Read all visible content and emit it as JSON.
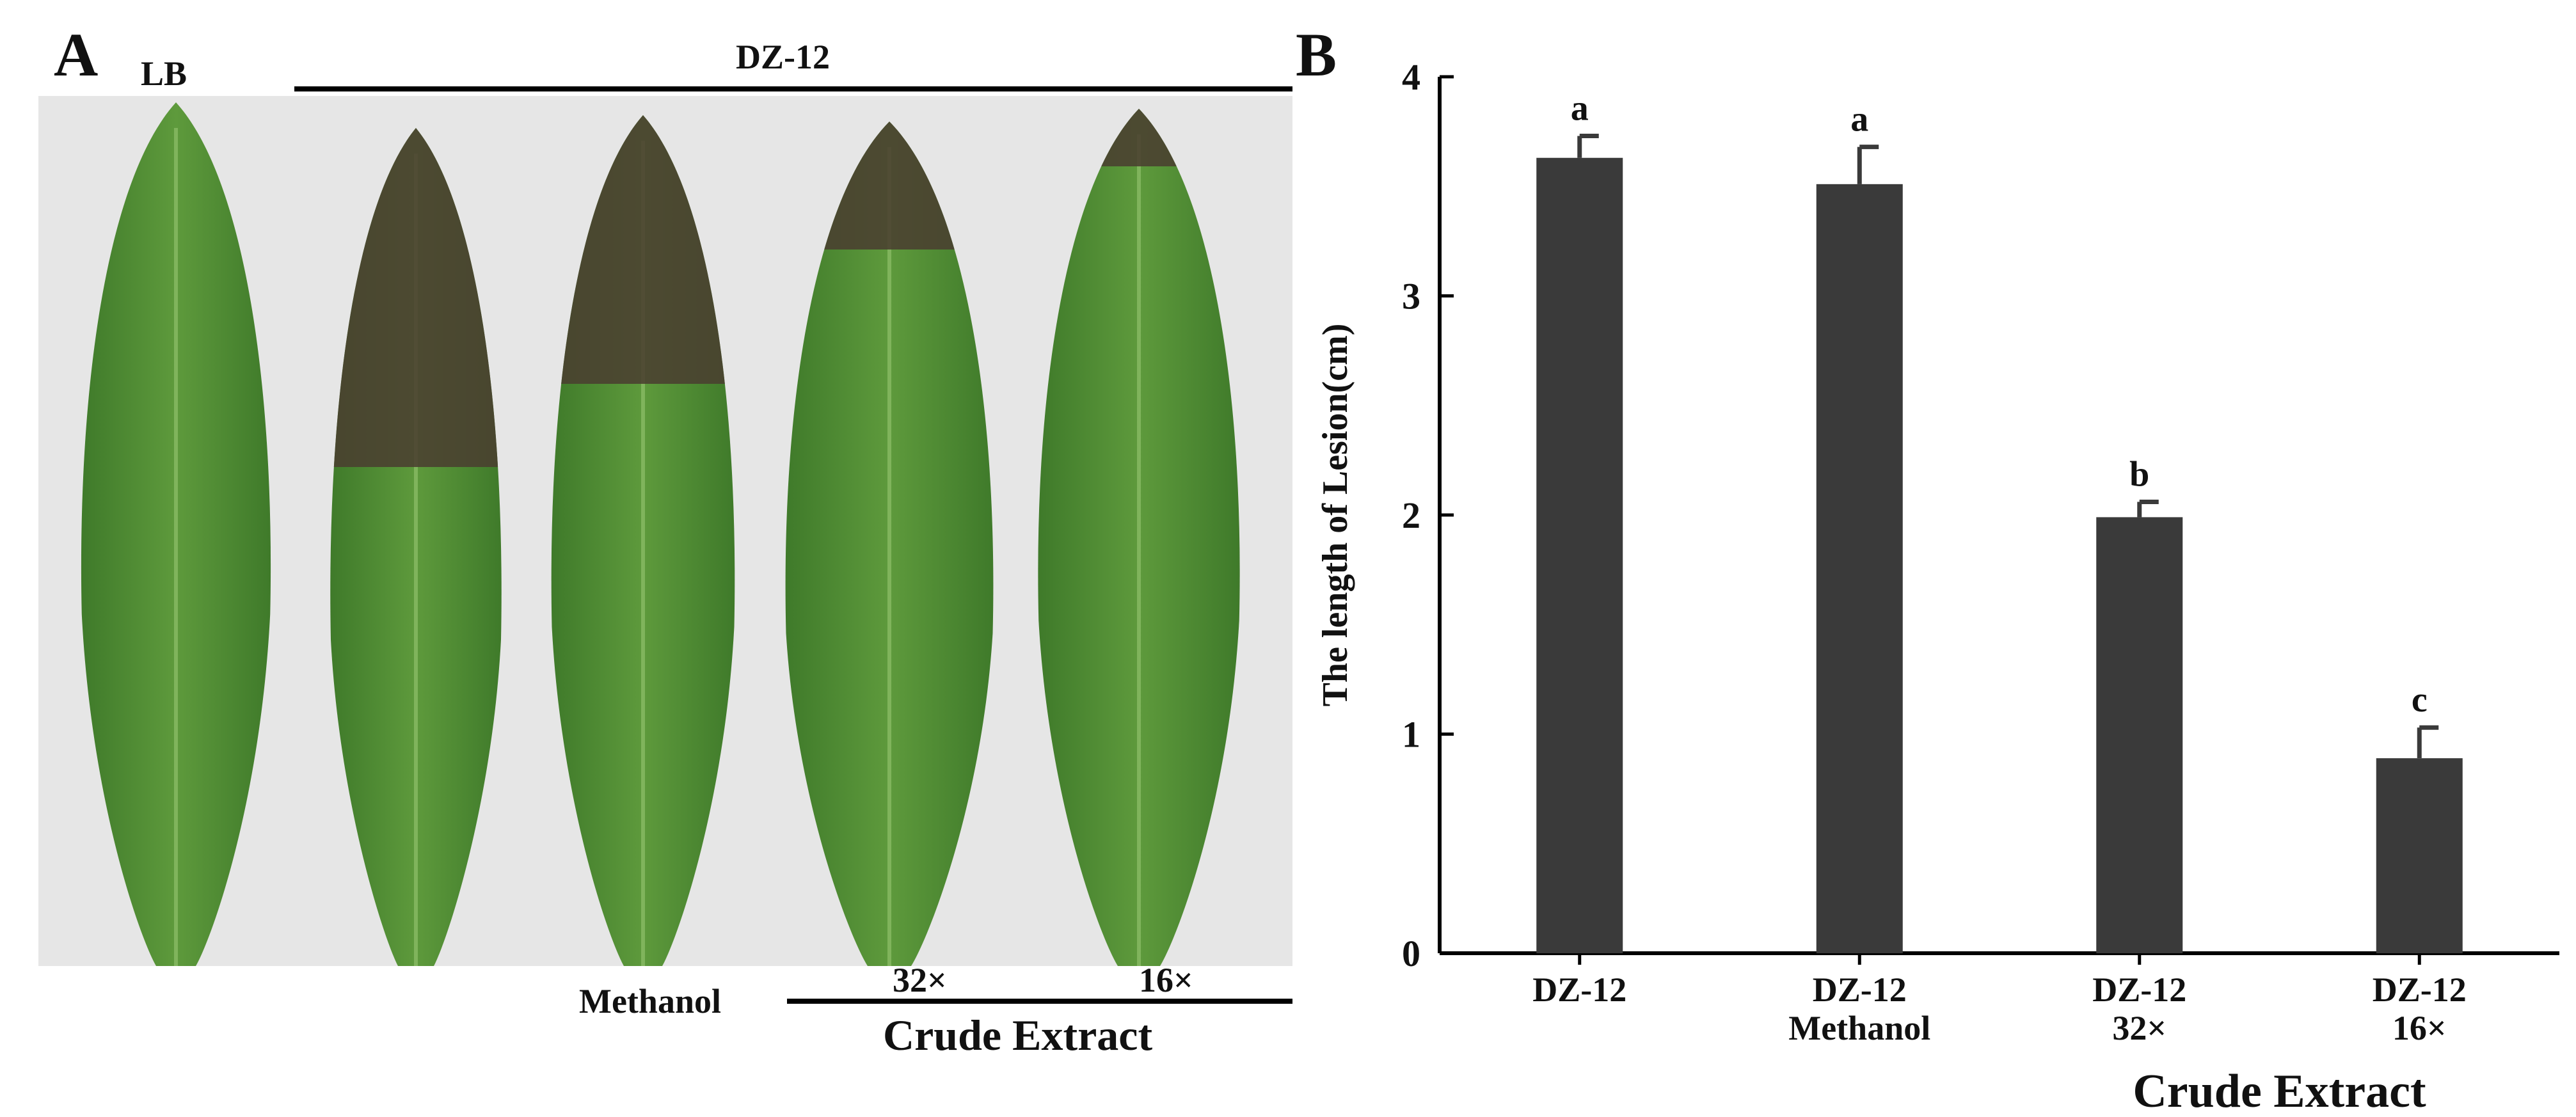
{
  "panel_a": {
    "letter": "A",
    "lb_label": "LB",
    "dz_label": "DZ-12",
    "methanol_label": "Methanol",
    "conc_32": "32×",
    "conc_16": "16×",
    "crude_label": "Crude Extract"
  },
  "panel_b": {
    "letter": "B",
    "crude_label": "Crude Extract"
  },
  "colors": {
    "bar": "#3a3a3a",
    "leaf": "#5e9a3c",
    "leaf_dark": "#3f7a2a",
    "lesion": "#4a3f30",
    "photo_bg": "#e6e6e6"
  },
  "chart_data": {
    "type": "bar",
    "categories": [
      "DZ-12",
      "DZ-12 Methanol",
      "DZ-12 32×",
      "DZ-12 16×"
    ],
    "category_lines": [
      [
        "DZ-12"
      ],
      [
        "DZ-12",
        "Methanol"
      ],
      [
        "DZ-12",
        "32×"
      ],
      [
        "DZ-12",
        "16×"
      ]
    ],
    "values": [
      3.63,
      3.51,
      1.99,
      0.89
    ],
    "errors": [
      0.1,
      0.17,
      0.07,
      0.14
    ],
    "significance": [
      "a",
      "a",
      "b",
      "c"
    ],
    "ylabel": "The length of Lesion(cm)",
    "ylim": [
      0,
      4
    ],
    "yticks": [
      "0",
      "1",
      "2",
      "3",
      "4"
    ],
    "grid": false
  }
}
